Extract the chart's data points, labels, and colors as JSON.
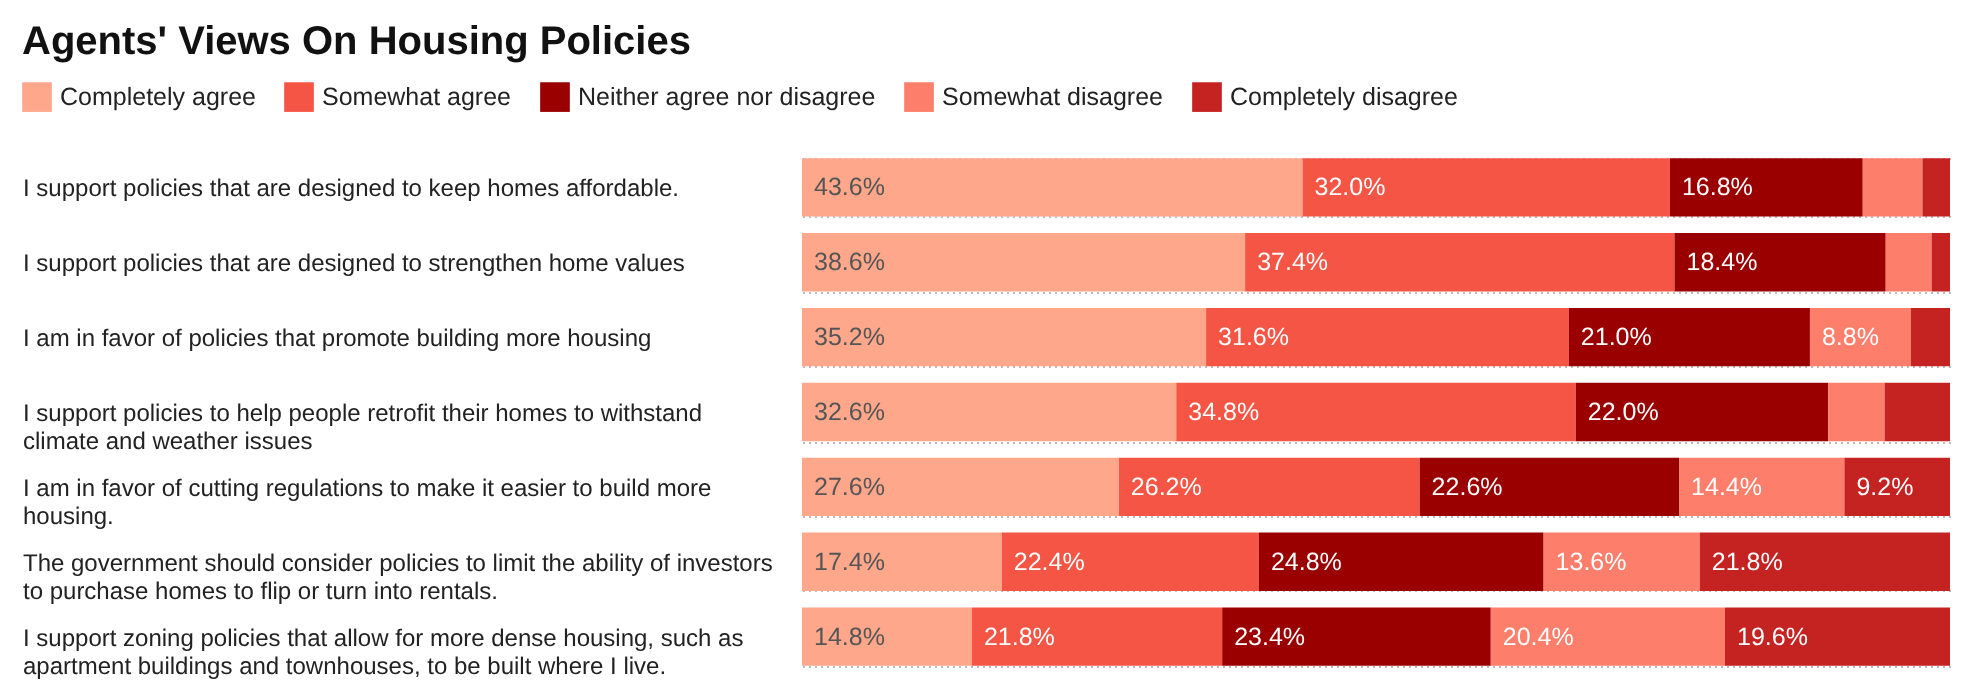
{
  "chart_data": {
    "type": "bar",
    "orientation": "horizontal",
    "stacked": true,
    "title": "Agents' Views On Housing Policies",
    "categories": [
      "I support policies that are designed to keep homes affordable.",
      "I support policies that are designed to strengthen home values",
      "I am in favor of policies that promote building more housing",
      "I support policies to help people retrofit their homes to withstand climate and weather issues",
      "I am in favor of cutting regulations to make it easier to build more housing.",
      "The government should consider policies to limit the ability of investors to purchase homes to flip or turn into rentals.",
      "I support zoning policies that allow for more dense housing, such as apartment buildings and townhouses, to be built where I live."
    ],
    "series": [
      {
        "name": "Completely agree",
        "color": "#fea78b",
        "values": [
          43.6,
          38.6,
          35.2,
          32.6,
          27.6,
          17.4,
          14.8
        ],
        "value_labels": [
          "43.6%",
          "38.6%",
          "35.2%",
          "32.6%",
          "27.6%",
          "17.4%",
          "14.8%"
        ]
      },
      {
        "name": "Somewhat agree",
        "color": "#f55545",
        "values": [
          32.0,
          37.4,
          31.6,
          34.8,
          26.2,
          22.4,
          21.8
        ],
        "value_labels": [
          "32.0%",
          "37.4%",
          "31.6%",
          "34.8%",
          "26.2%",
          "22.4%",
          "21.8%"
        ]
      },
      {
        "name": "Neither agree nor disagree",
        "color": "#9b0000",
        "values": [
          16.8,
          18.4,
          21.0,
          22.0,
          22.6,
          24.8,
          23.4
        ],
        "value_labels": [
          "16.8%",
          "18.4%",
          "21.0%",
          "22.0%",
          "22.6%",
          "24.8%",
          "23.4%"
        ]
      },
      {
        "name": "Somewhat disagree",
        "color": "#fd7e6a",
        "values": [
          5.2,
          4.0,
          8.8,
          4.9,
          14.4,
          13.6,
          20.4
        ],
        "value_labels": [
          null,
          null,
          "8.8%",
          null,
          "14.4%",
          "13.6%",
          "20.4%"
        ]
      },
      {
        "name": "Completely disagree",
        "color": "#c52222",
        "values": [
          2.4,
          1.6,
          3.4,
          5.7,
          9.2,
          21.8,
          19.6
        ],
        "value_labels": [
          null,
          null,
          null,
          null,
          "9.2%",
          "21.8%",
          "19.6%"
        ]
      }
    ],
    "xlim": [
      0,
      100
    ],
    "tick_labels": "y",
    "grid": "y",
    "legend": "top left"
  }
}
